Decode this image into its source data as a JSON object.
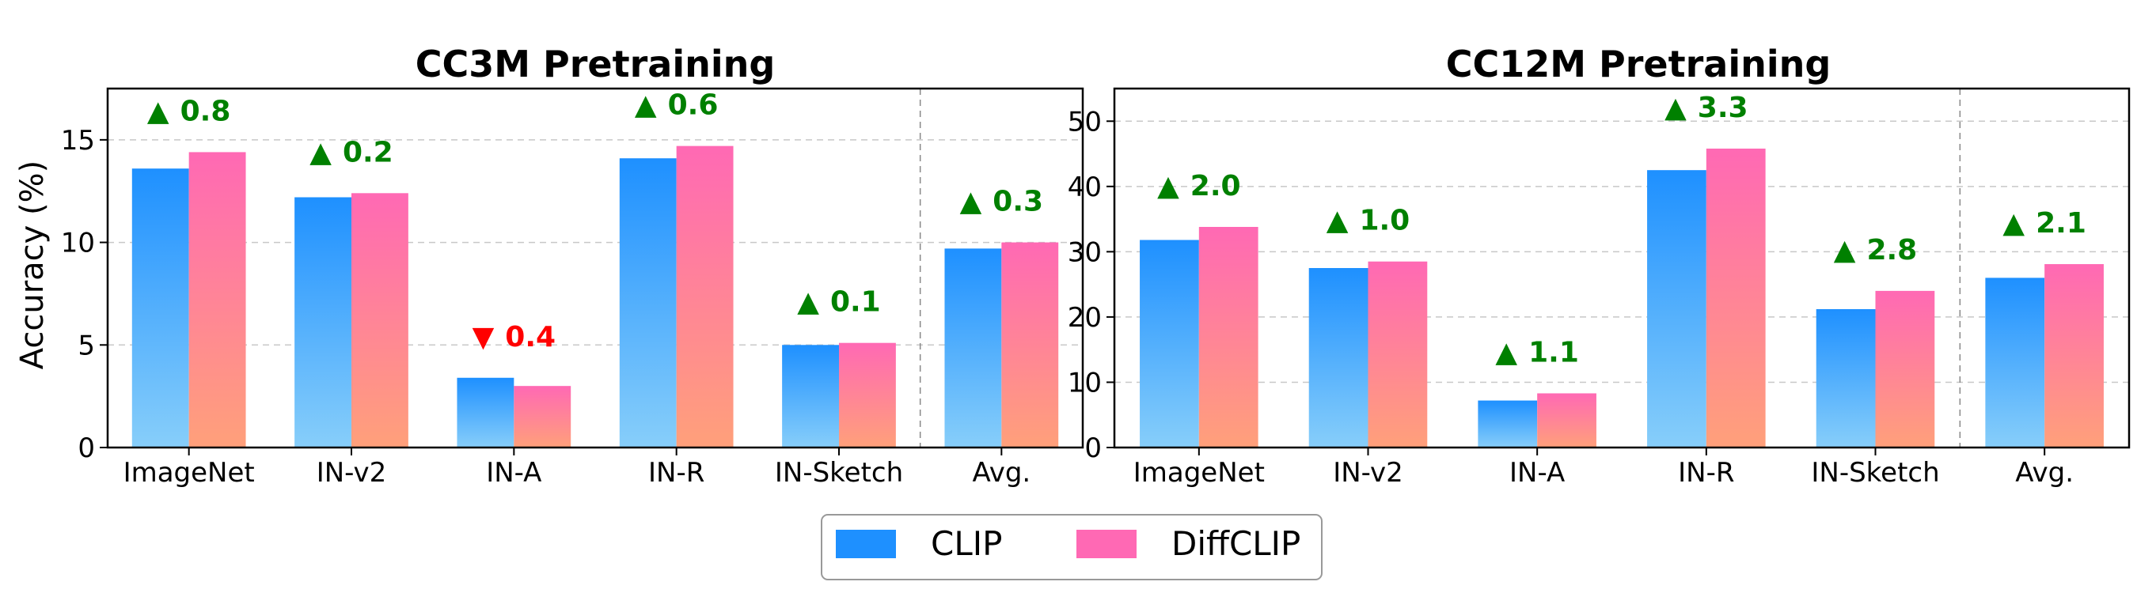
{
  "colors": {
    "clip_top": "#1e90ff",
    "clip_bottom": "#87cefa",
    "diffclip_top": "#ff69b4",
    "diffclip_bottom": "#ffa07a",
    "gain": "#008000",
    "loss": "#ff0000",
    "grid": "#c8c8c8"
  },
  "legend": {
    "placement": "bottom-center",
    "items": [
      {
        "label": "CLIP",
        "color": "#1e90ff"
      },
      {
        "label": "DiffCLIP",
        "color": "#ff69b4"
      }
    ]
  },
  "chart_data": [
    {
      "type": "bar",
      "title": "CC3M Pretraining",
      "ylabel": "Accuracy (%)",
      "categories": [
        "ImageNet",
        "IN-v2",
        "IN-A",
        "IN-R",
        "IN-Sketch",
        "Avg."
      ],
      "series": [
        {
          "name": "CLIP",
          "values": [
            13.6,
            12.2,
            3.4,
            14.1,
            5.0,
            9.7
          ]
        },
        {
          "name": "DiffCLIP",
          "values": [
            14.4,
            12.4,
            3.0,
            14.7,
            5.1,
            10.0
          ]
        }
      ],
      "annotations": [
        {
          "symbol": "▲",
          "text": "0.8",
          "direction": "up"
        },
        {
          "symbol": "▲",
          "text": "0.2",
          "direction": "up"
        },
        {
          "symbol": "▼",
          "text": "0.4",
          "direction": "down"
        },
        {
          "symbol": "▲",
          "text": "0.6",
          "direction": "up"
        },
        {
          "symbol": "▲",
          "text": "0.1",
          "direction": "up"
        },
        {
          "symbol": "▲",
          "text": "0.3",
          "direction": "up"
        }
      ],
      "ylim": [
        0,
        17.5
      ],
      "yticks": [
        "0",
        "5",
        "10",
        "15"
      ],
      "grid": true
    },
    {
      "type": "bar",
      "title": "CC12M Pretraining",
      "ylabel": "",
      "categories": [
        "ImageNet",
        "IN-v2",
        "IN-A",
        "IN-R",
        "IN-Sketch",
        "Avg."
      ],
      "series": [
        {
          "name": "CLIP",
          "values": [
            31.8,
            27.5,
            7.2,
            42.5,
            21.2,
            26.0
          ]
        },
        {
          "name": "DiffCLIP",
          "values": [
            33.8,
            28.5,
            8.3,
            45.8,
            24.0,
            28.1
          ]
        }
      ],
      "annotations": [
        {
          "symbol": "▲",
          "text": "2.0",
          "direction": "up"
        },
        {
          "symbol": "▲",
          "text": "1.0",
          "direction": "up"
        },
        {
          "symbol": "▲",
          "text": "1.1",
          "direction": "up"
        },
        {
          "symbol": "▲",
          "text": "3.3",
          "direction": "up"
        },
        {
          "symbol": "▲",
          "text": "2.8",
          "direction": "up"
        },
        {
          "symbol": "▲",
          "text": "2.1",
          "direction": "up"
        }
      ],
      "ylim": [
        0,
        55
      ],
      "yticks": [
        "0",
        "10",
        "20",
        "30",
        "40",
        "50"
      ],
      "grid": true
    }
  ]
}
